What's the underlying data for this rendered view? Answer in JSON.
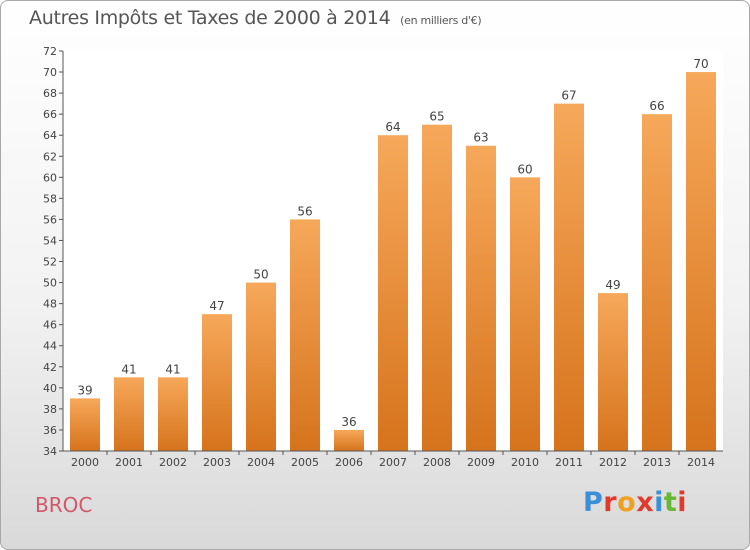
{
  "header": {
    "title": "Autres Impôts et Taxes de 2000 à 2014",
    "unit": "(en milliers d'€)"
  },
  "footer": {
    "city": "BROC",
    "logo": "Proxiti"
  },
  "colors": {
    "bar_light": "#f6a85a",
    "bar_dark": "#d6731c",
    "city": "#d2576a",
    "logo_letters": [
      "#3a8fd8",
      "#e23a2a",
      "#f0a020",
      "#e23a2a",
      "#3a8fd8",
      "#66b832",
      "#e23a2a"
    ]
  },
  "chart_data": {
    "type": "bar",
    "title": "Autres Impôts et Taxes de 2000 à 2014",
    "subtitle": "(en milliers d'€)",
    "xlabel": "",
    "ylabel": "",
    "categories": [
      "2000",
      "2001",
      "2002",
      "2003",
      "2004",
      "2005",
      "2006",
      "2007",
      "2008",
      "2009",
      "2010",
      "2011",
      "2012",
      "2013",
      "2014"
    ],
    "values": [
      39,
      41,
      41,
      47,
      50,
      56,
      36,
      64,
      65,
      63,
      60,
      67,
      49,
      66,
      70
    ],
    "ylim": [
      34,
      72
    ],
    "yticks": [
      34,
      36,
      38,
      40,
      42,
      44,
      46,
      48,
      50,
      52,
      54,
      56,
      58,
      60,
      62,
      64,
      66,
      68,
      70,
      72
    ],
    "grid": false,
    "legend": "none"
  }
}
